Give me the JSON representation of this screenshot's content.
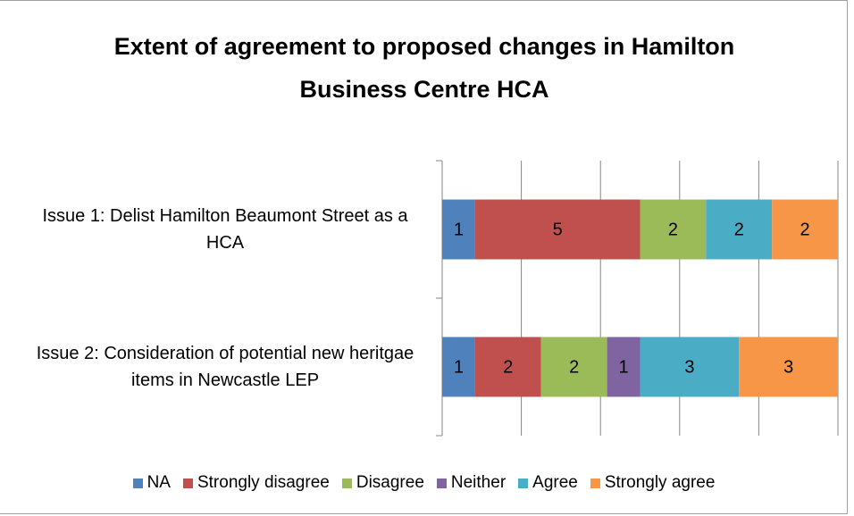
{
  "chart_data": {
    "type": "stacked_bar_horizontal",
    "title": "Extent of agreement to proposed changes in Hamilton Business Centre HCA",
    "categories": [
      "Issue 1: Delist Hamilton Beaumont Street as a HCA",
      "Issue 2: Consideration of potential new heritgae items in Newcastle LEP"
    ],
    "series": [
      {
        "name": "NA",
        "color": "#4f81bd",
        "values": [
          1,
          1
        ]
      },
      {
        "name": "Strongly disagree",
        "color": "#c0504d",
        "values": [
          5,
          2
        ]
      },
      {
        "name": "Disagree",
        "color": "#9bbb59",
        "values": [
          2,
          2
        ]
      },
      {
        "name": "Neither",
        "color": "#8064a2",
        "values": [
          0,
          1
        ]
      },
      {
        "name": "Agree",
        "color": "#4bacc6",
        "values": [
          2,
          3
        ]
      },
      {
        "name": "Strongly agree",
        "color": "#f79646",
        "values": [
          2,
          3
        ]
      }
    ],
    "xlim": [
      0,
      12
    ],
    "xticks": [
      0,
      2.4,
      4.8,
      7.2,
      9.6,
      12
    ],
    "grid": true,
    "legend": "bottom"
  }
}
